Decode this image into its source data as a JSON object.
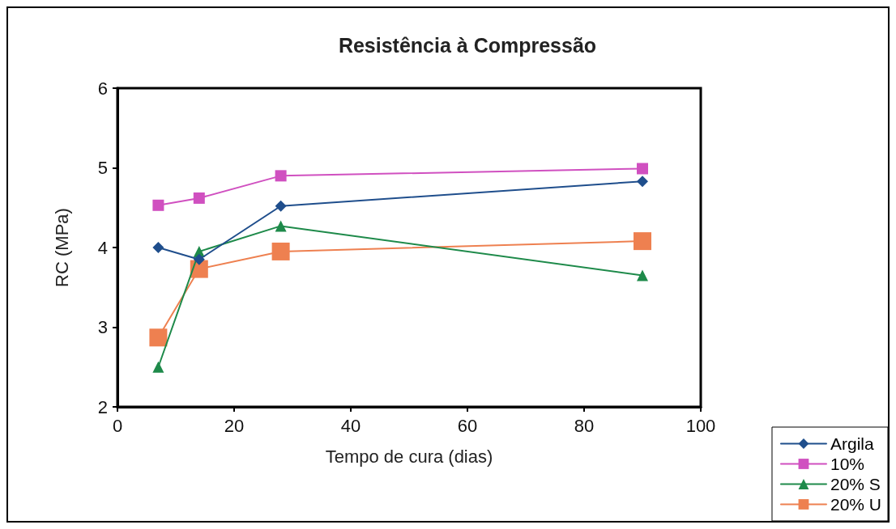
{
  "chart_data": {
    "type": "line",
    "title": "Resistência à Compressão",
    "xlabel": "Tempo de cura (dias)",
    "ylabel": "RC (MPa)",
    "x": [
      7,
      14,
      28,
      90
    ],
    "series": [
      {
        "name": "Argila",
        "color": "#1f4e8c",
        "marker": "diamond",
        "values": [
          4.0,
          3.85,
          4.52,
          4.83
        ]
      },
      {
        "name": "10%",
        "color": "#d050c0",
        "marker": "square",
        "values": [
          4.53,
          4.62,
          4.9,
          4.99
        ]
      },
      {
        "name": "20% S",
        "color": "#1e8a4a",
        "marker": "triangle",
        "values": [
          2.5,
          3.95,
          4.27,
          3.65
        ]
      },
      {
        "name": "20% U",
        "color": "#ee8050",
        "marker": "square",
        "values": [
          2.87,
          3.73,
          3.95,
          4.08
        ]
      }
    ],
    "xlim": [
      0,
      100
    ],
    "xticks": [
      0,
      20,
      40,
      60,
      80,
      100
    ],
    "ylim": [
      2,
      6
    ],
    "yticks": [
      2,
      3,
      4,
      5,
      6
    ],
    "grid": false,
    "legend": "bottom right",
    "line_style": "solid"
  }
}
